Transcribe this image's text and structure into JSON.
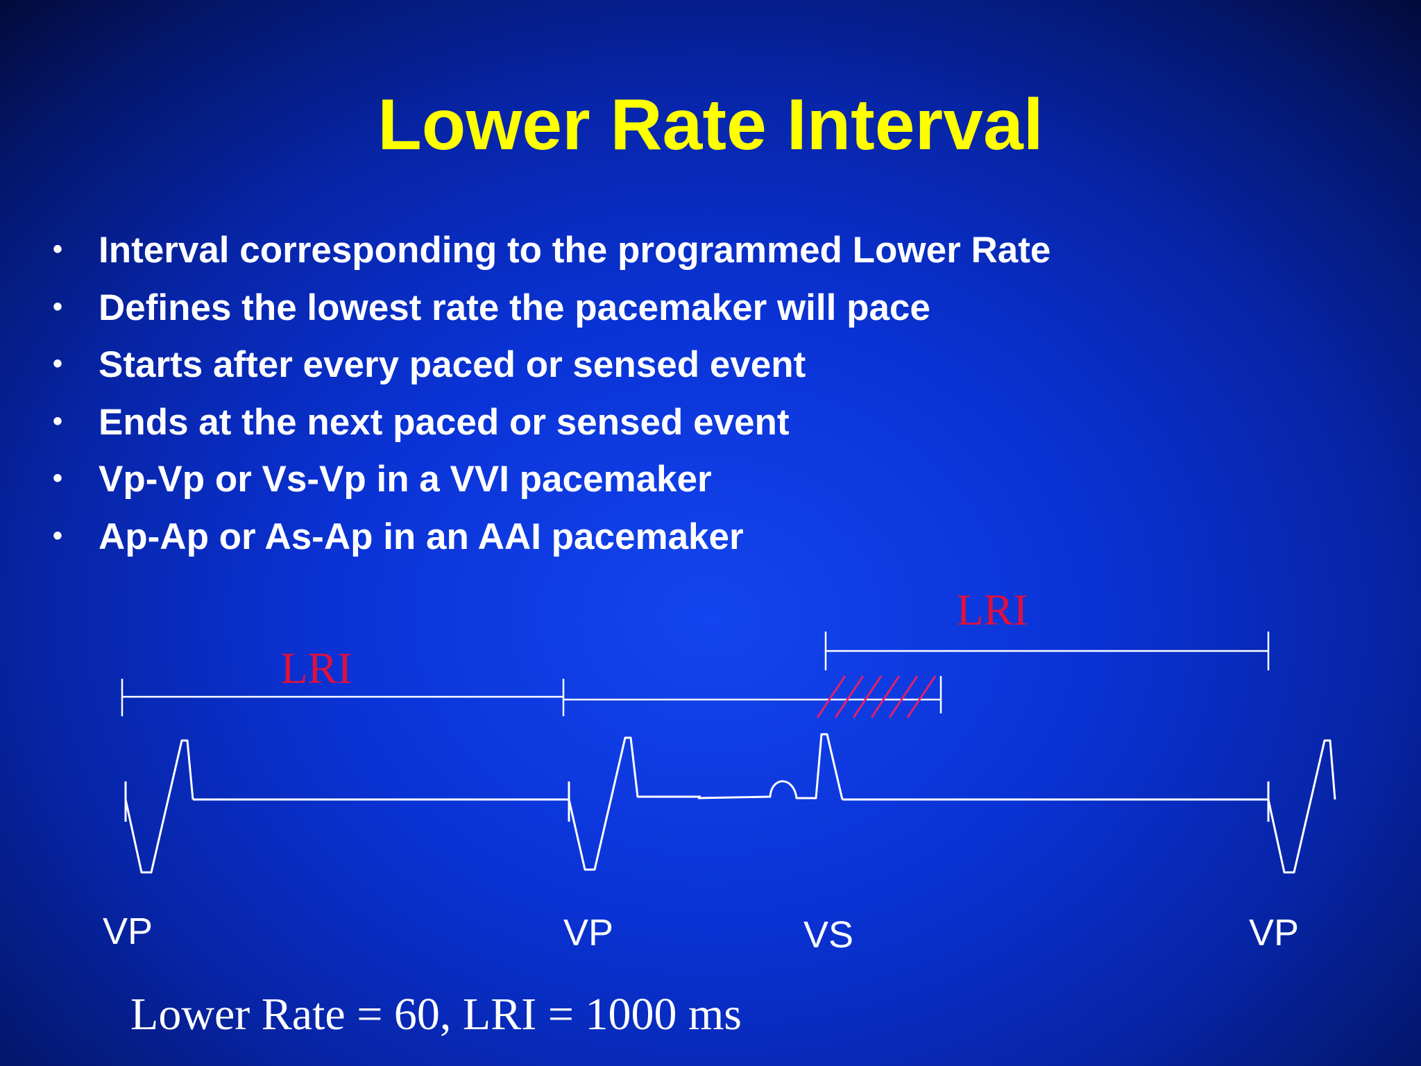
{
  "title": "Lower Rate Interval",
  "bullets": [
    "Interval corresponding to the programmed Lower Rate",
    "Defines the lowest rate the pacemaker will pace",
    "Starts after every paced or sensed event",
    "Ends at the next paced or sensed event",
    "Vp-Vp or Vs-Vp in a VVI pacemaker",
    "Ap-Ap or As-Ap in an AAI pacemaker"
  ],
  "bullet_glyph": "•",
  "diagram": {
    "interval_label_1": "LRI",
    "interval_label_2": "LRI",
    "event_labels": [
      "VP",
      "VP",
      "VS",
      "VP"
    ]
  },
  "footer": "Lower Rate = 60, LRI = 1000 ms",
  "colors": {
    "title": "#ffff00",
    "text": "#ffffff",
    "interval_label": "#e0103c",
    "hatch": "#e0206e"
  }
}
